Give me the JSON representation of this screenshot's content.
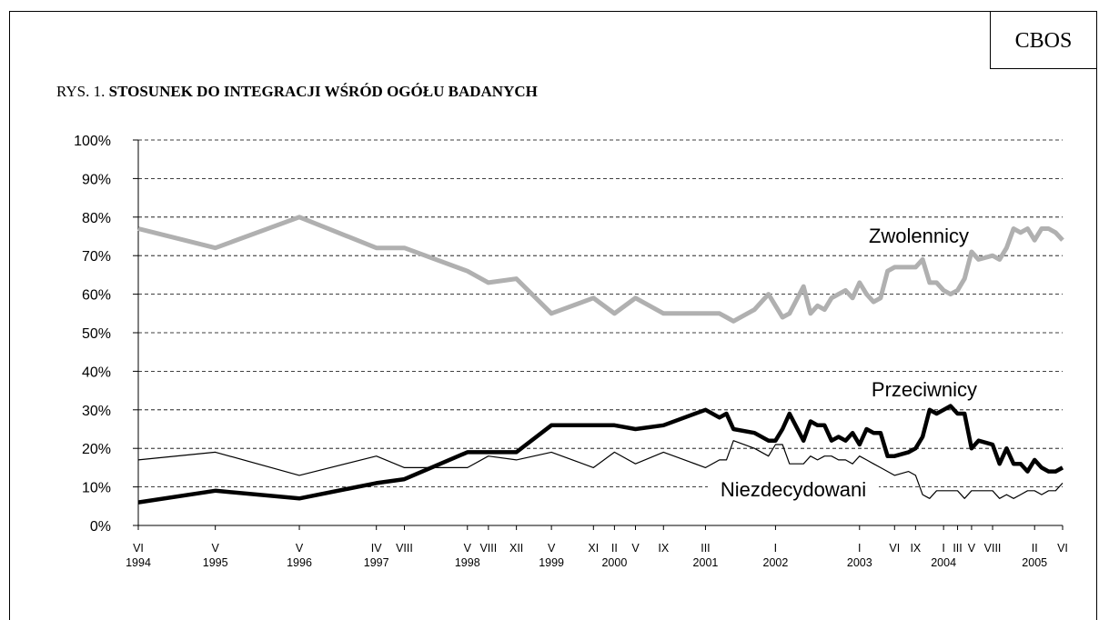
{
  "chart_data": {
    "type": "line",
    "source": "CBOS",
    "figure_label": "RYS. 1.",
    "title": "STOSUNEK DO INTEGRACJI WŚRÓD OGÓŁU BADANYCH",
    "x": [
      "1994-06",
      "1995-05",
      "1996-05",
      "1997-04",
      "1997-08",
      "1998-05",
      "1998-08",
      "1998-12",
      "1999-05",
      "1999-11",
      "2000-02",
      "2000-05",
      "2000-09",
      "2001-03",
      "2001-05",
      "2001-06",
      "2001-07",
      "2001-10",
      "2001-12",
      "2002-01",
      "2002-02",
      "2002-03",
      "2002-05",
      "2002-06",
      "2002-07",
      "2002-08",
      "2002-09",
      "2002-10",
      "2002-11",
      "2002-12",
      "2003-01",
      "2003-02",
      "2003-03",
      "2003-04",
      "2003-05",
      "2003-06",
      "2003-08",
      "2003-09",
      "2003-10",
      "2003-11",
      "2003-12",
      "2004-01",
      "2004-02",
      "2004-03",
      "2004-04",
      "2004-05",
      "2004-06",
      "2004-08",
      "2004-09",
      "2004-10",
      "2004-11",
      "2004-12",
      "2005-01",
      "2005-02",
      "2005-03",
      "2005-04",
      "2005-05",
      "2005-06"
    ],
    "series": [
      {
        "name": "Zwolennicy",
        "color": "#b0b0b0",
        "width": 5,
        "values": [
          77,
          72,
          80,
          72,
          72,
          66,
          63,
          64,
          55,
          59,
          55,
          59,
          55,
          55,
          55,
          54,
          53,
          56,
          60,
          57,
          54,
          55,
          62,
          55,
          57,
          56,
          59,
          60,
          61,
          59,
          63,
          60,
          58,
          59,
          66,
          67,
          67,
          67,
          69,
          63,
          63,
          61,
          60,
          61,
          64,
          71,
          69,
          70,
          69,
          72,
          77,
          76,
          77,
          74,
          77,
          77,
          76,
          74
        ]
      },
      {
        "name": "Przeciwnicy",
        "color": "#000000",
        "width": 4.5,
        "values": [
          6,
          9,
          7,
          11,
          12,
          19,
          19,
          19,
          26,
          26,
          26,
          25,
          26,
          30,
          28,
          29,
          25,
          24,
          22,
          22,
          25,
          29,
          22,
          27,
          26,
          26,
          22,
          23,
          22,
          24,
          21,
          25,
          24,
          24,
          18,
          18,
          19,
          20,
          23,
          30,
          29,
          30,
          31,
          29,
          29,
          20,
          22,
          21,
          16,
          20,
          16,
          16,
          14,
          17,
          15,
          14,
          14,
          15
        ]
      },
      {
        "name": "Niezdecydowani",
        "color": "#000000",
        "width": 1.2,
        "values": [
          17,
          19,
          13,
          18,
          15,
          15,
          18,
          17,
          19,
          15,
          19,
          16,
          19,
          15,
          17,
          17,
          22,
          20,
          18,
          21,
          21,
          16,
          16,
          18,
          17,
          18,
          18,
          17,
          17,
          16,
          18,
          17,
          16,
          15,
          14,
          13,
          14,
          13,
          8,
          7,
          9,
          9,
          9,
          9,
          7,
          9,
          9,
          9,
          7,
          8,
          7,
          8,
          9,
          9,
          8,
          9,
          9,
          11
        ]
      }
    ],
    "xlim": [
      "1994-06",
      "2005-06"
    ],
    "xticks": [
      {
        "value": "1994-06",
        "label": "VI"
      },
      {
        "value": "1995-05",
        "label": "V"
      },
      {
        "value": "1996-05",
        "label": "V"
      },
      {
        "value": "1997-04",
        "label": "IV"
      },
      {
        "value": "1997-08",
        "label": "VIII"
      },
      {
        "value": "1998-05",
        "label": "V"
      },
      {
        "value": "1998-08",
        "label": "VIII"
      },
      {
        "value": "1998-12",
        "label": "XII"
      },
      {
        "value": "1999-05",
        "label": "V"
      },
      {
        "value": "1999-11",
        "label": "XI"
      },
      {
        "value": "2000-02",
        "label": "II"
      },
      {
        "value": "2000-05",
        "label": "V"
      },
      {
        "value": "2000-09",
        "label": "IX"
      },
      {
        "value": "2001-03",
        "label": "III"
      },
      {
        "value": "2002-01",
        "label": "I"
      },
      {
        "value": "2003-01",
        "label": "I"
      },
      {
        "value": "2003-06",
        "label": "VI"
      },
      {
        "value": "2003-09",
        "label": "IX"
      },
      {
        "value": "2004-01",
        "label": "I"
      },
      {
        "value": "2004-03",
        "label": "III"
      },
      {
        "value": "2004-05",
        "label": "V"
      },
      {
        "value": "2004-08",
        "label": "VIII"
      },
      {
        "value": "2005-02",
        "label": "II"
      },
      {
        "value": "2005-06",
        "label": "VI"
      }
    ],
    "x_year_labels": [
      {
        "value": "1994-06",
        "label": "1994"
      },
      {
        "value": "1995-05",
        "label": "1995"
      },
      {
        "value": "1996-05",
        "label": "1996"
      },
      {
        "value": "1997-04",
        "label": "1997"
      },
      {
        "value": "1998-05",
        "label": "1998"
      },
      {
        "value": "1999-05",
        "label": "1999"
      },
      {
        "value": "2000-02",
        "label": "2000"
      },
      {
        "value": "2001-03",
        "label": "2001"
      },
      {
        "value": "2002-01",
        "label": "2002"
      },
      {
        "value": "2003-01",
        "label": "2003"
      },
      {
        "value": "2004-01",
        "label": "2004"
      },
      {
        "value": "2005-02",
        "label": "2005"
      }
    ],
    "ylim": [
      0,
      100
    ],
    "yticks": [
      {
        "value": 0,
        "label": "0%"
      },
      {
        "value": 10,
        "label": "10%"
      },
      {
        "value": 20,
        "label": "20%"
      },
      {
        "value": 30,
        "label": "30%"
      },
      {
        "value": 40,
        "label": "40%"
      },
      {
        "value": 50,
        "label": "50%"
      },
      {
        "value": 60,
        "label": "60%"
      },
      {
        "value": 70,
        "label": "70%"
      },
      {
        "value": 80,
        "label": "80%"
      },
      {
        "value": 90,
        "label": "90%"
      },
      {
        "value": 100,
        "label": "100%"
      }
    ],
    "grid": true
  }
}
